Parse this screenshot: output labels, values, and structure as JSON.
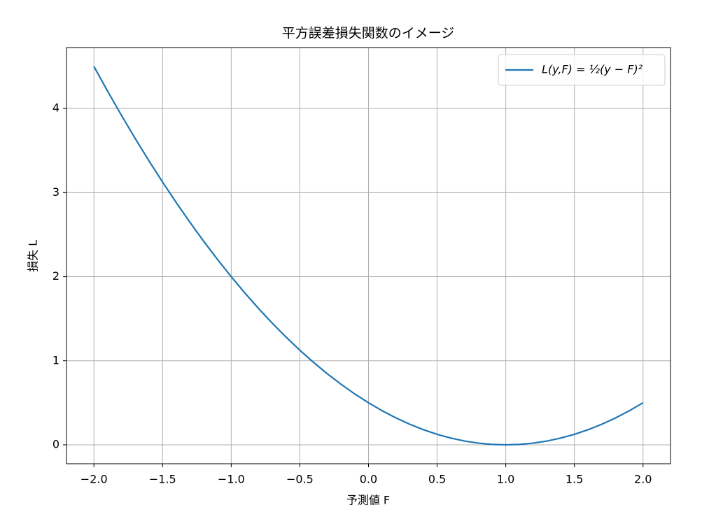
{
  "chart_data": {
    "type": "line",
    "title": "平方誤差損失関数のイメージ",
    "xlabel": "予測値 F",
    "ylabel": "損失 L",
    "x": [
      -2.0,
      -1.9,
      -1.8,
      -1.7,
      -1.6,
      -1.5,
      -1.4,
      -1.3,
      -1.2,
      -1.1,
      -1.0,
      -0.9,
      -0.8,
      -0.7,
      -0.6,
      -0.5,
      -0.4,
      -0.3,
      -0.2,
      -0.1,
      0.0,
      0.1,
      0.2,
      0.3,
      0.4,
      0.5,
      0.6,
      0.7,
      0.8,
      0.9,
      1.0,
      1.1,
      1.2,
      1.3,
      1.4,
      1.5,
      1.6,
      1.7,
      1.8,
      1.9,
      2.0
    ],
    "series": [
      {
        "name": "L(y,F) = ½(y − F)²",
        "color": "#1f77b4",
        "values": [
          4.5,
          4.205,
          3.92,
          3.645,
          3.38,
          3.125,
          2.88,
          2.645,
          2.42,
          2.205,
          2,
          1.805,
          1.62,
          1.445,
          1.28,
          1.125,
          0.98,
          0.845,
          0.72,
          0.605,
          0.5,
          0.405,
          0.32,
          0.245,
          0.18,
          0.125,
          0.08,
          0.045,
          0.02,
          0.005,
          0,
          0.005,
          0.02,
          0.045,
          0.08,
          0.125,
          0.18,
          0.245,
          0.32,
          0.405,
          0.5
        ]
      }
    ],
    "xlim": [
      -2.2,
      2.2
    ],
    "ylim": [
      -0.225,
      4.725
    ],
    "xticks": [
      {
        "value": -2,
        "label": "−2.0"
      },
      {
        "value": -1.5,
        "label": "−1.5"
      },
      {
        "value": -1,
        "label": "−1.0"
      },
      {
        "value": -0.5,
        "label": "−0.5"
      },
      {
        "value": 0,
        "label": "0.0"
      },
      0.5,
      {
        "value": 1,
        "label": "1.0"
      },
      1.5,
      {
        "value": 2,
        "label": "2.0"
      }
    ],
    "yticks": [
      0,
      1,
      2,
      3,
      4
    ],
    "grid": true,
    "legend": "upper-right"
  }
}
